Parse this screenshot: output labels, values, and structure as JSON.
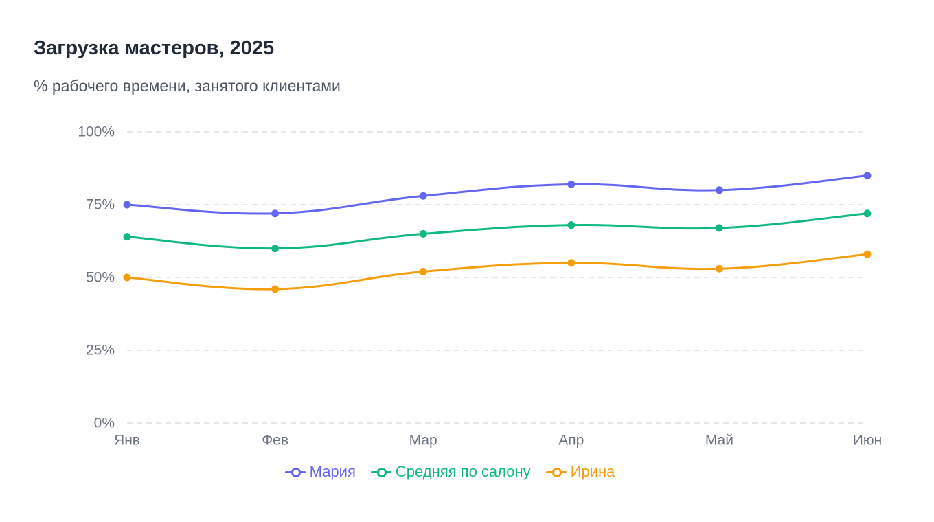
{
  "chart_data": {
    "type": "line",
    "title": "Загрузка мастеров, 2025",
    "subtitle": "% рабочего времени, занятого клиентами",
    "xlabel": "",
    "ylabel": "",
    "categories": [
      "Янв",
      "Фев",
      "Мар",
      "Апр",
      "Май",
      "Июн"
    ],
    "ylim": [
      0,
      100
    ],
    "yticks": [
      0,
      25,
      50,
      75,
      100
    ],
    "ytick_labels": [
      "0%",
      "25%",
      "50%",
      "75%",
      "100%"
    ],
    "grid": true,
    "legend_position": "bottom",
    "series": [
      {
        "name": "Мария",
        "color": "#6366f1",
        "values": [
          75,
          72,
          78,
          82,
          80,
          85
        ]
      },
      {
        "name": "Средняя по салону",
        "color": "#10b981",
        "values": [
          64,
          60,
          65,
          68,
          67,
          72
        ]
      },
      {
        "name": "Ирина",
        "color": "#f59e0b",
        "values": [
          50,
          46,
          52,
          55,
          53,
          58
        ]
      }
    ]
  }
}
